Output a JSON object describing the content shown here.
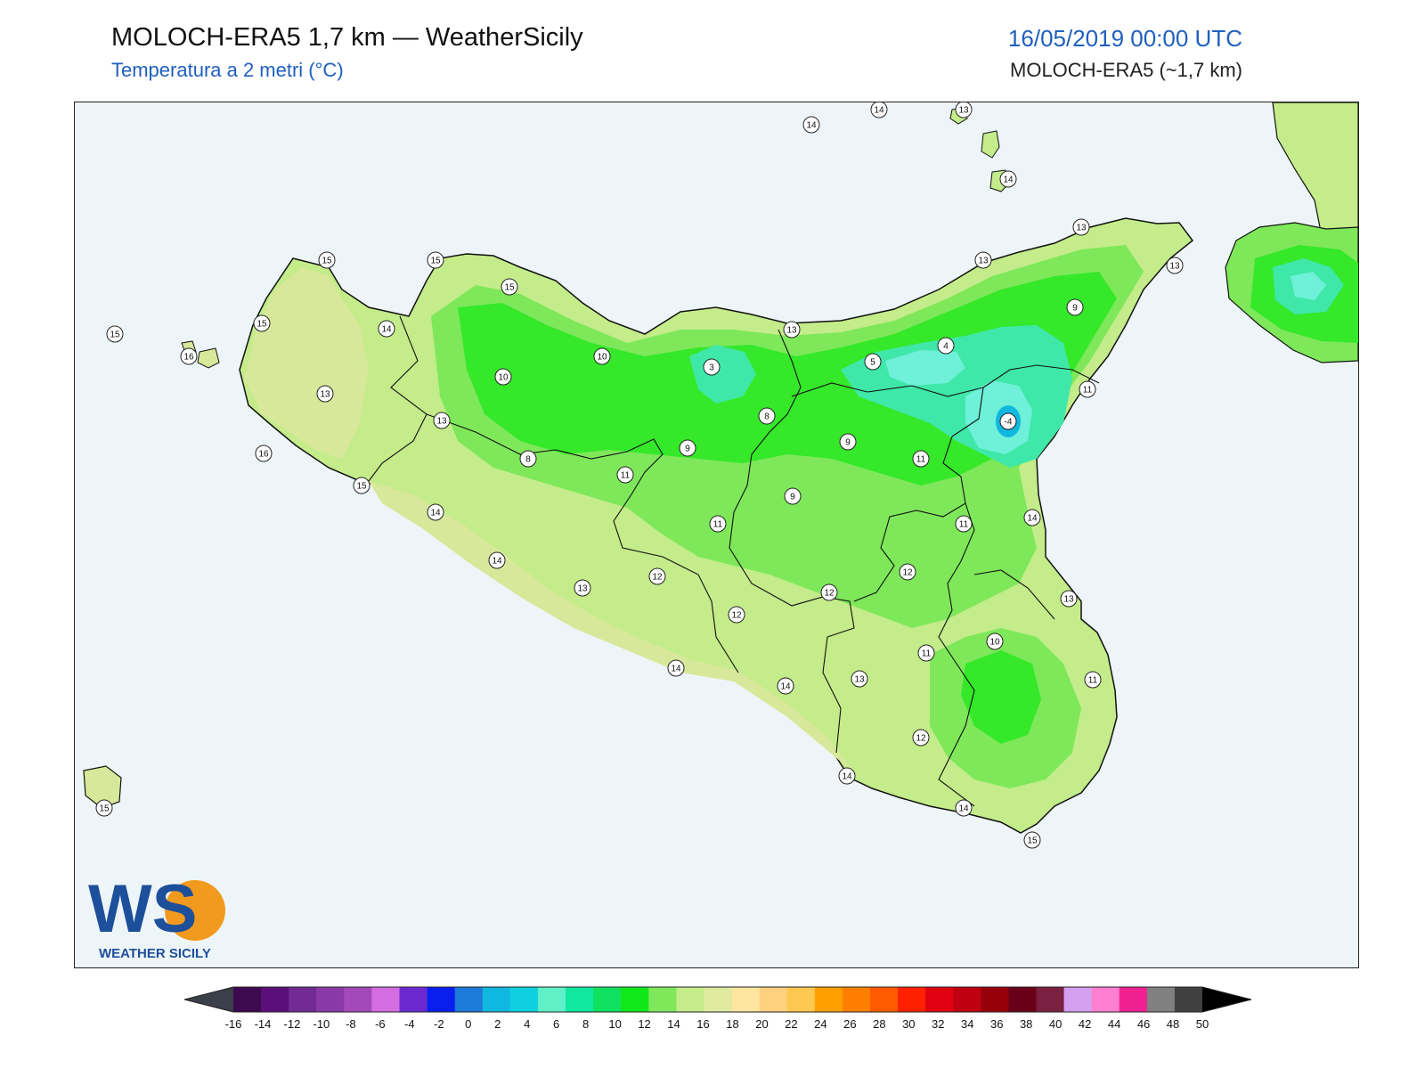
{
  "header": {
    "title": "MOLOCH-ERA5 1,7 km — WeatherSicily",
    "subtitle": "Temperatura a 2 metri (°C)",
    "datetime": "16/05/2019 00:00 UTC",
    "model": "MOLOCH-ERA5 (~1,7 km)"
  },
  "logo": {
    "letters": "WS",
    "caption": "WEATHER SICILY"
  },
  "colors": {
    "sea": "#eef5f9",
    "land_warm": "#d8e89a",
    "land_mild": "#c4ec8a",
    "land_green": "#7ee85a",
    "land_bright": "#35e82a",
    "land_teal": "#3fe8a8",
    "land_cyan": "#6ff0d8",
    "peak_blue": "#1a7bd8",
    "title_blue": "#1f5fbf"
  },
  "labels": [
    {
      "v": "14"
    },
    {
      "v": "14"
    },
    {
      "v": "13"
    },
    {
      "v": "14"
    },
    {
      "v": "13"
    },
    {
      "v": "15"
    },
    {
      "v": "15"
    },
    {
      "v": "15"
    },
    {
      "v": "15"
    },
    {
      "v": "14"
    },
    {
      "v": "15"
    },
    {
      "v": "16"
    },
    {
      "v": "13"
    },
    {
      "v": "10"
    },
    {
      "v": "10"
    },
    {
      "v": "13"
    },
    {
      "v": "16"
    },
    {
      "v": "8"
    },
    {
      "v": "15"
    },
    {
      "v": "14"
    },
    {
      "v": "14"
    },
    {
      "v": "3"
    },
    {
      "v": "8"
    },
    {
      "v": "9"
    },
    {
      "v": "11"
    },
    {
      "v": "13"
    },
    {
      "v": "5"
    },
    {
      "v": "4"
    },
    {
      "v": "13"
    },
    {
      "v": "9"
    },
    {
      "v": "13"
    },
    {
      "v": "11"
    },
    {
      "v": "-4"
    },
    {
      "v": "9"
    },
    {
      "v": "11"
    },
    {
      "v": "9"
    },
    {
      "v": "11"
    },
    {
      "v": "11"
    },
    {
      "v": "14"
    },
    {
      "v": "12"
    },
    {
      "v": "13"
    },
    {
      "v": "12"
    },
    {
      "v": "12"
    },
    {
      "v": "12"
    },
    {
      "v": "14"
    },
    {
      "v": "14"
    },
    {
      "v": "13"
    },
    {
      "v": "11"
    },
    {
      "v": "10"
    },
    {
      "v": "13"
    },
    {
      "v": "11"
    },
    {
      "v": "12"
    },
    {
      "v": "14"
    },
    {
      "v": "14"
    },
    {
      "v": "15"
    },
    {
      "v": "15"
    }
  ],
  "colorbar": {
    "ticks": [
      "-16",
      "-14",
      "-12",
      "-10",
      "-8",
      "-6",
      "-4",
      "-2",
      "0",
      "2",
      "4",
      "6",
      "8",
      "10",
      "12",
      "14",
      "16",
      "18",
      "20",
      "22",
      "24",
      "26",
      "28",
      "30",
      "32",
      "34",
      "36",
      "38",
      "40",
      "42",
      "44",
      "46",
      "48",
      "50"
    ],
    "swatches": [
      "#3d0a4f",
      "#5a1078",
      "#722a94",
      "#8a3aa8",
      "#a44ab8",
      "#d46ee0",
      "#6a2ad0",
      "#0a1ef0",
      "#1a7bd8",
      "#10b8e0",
      "#0fd0e0",
      "#60f0c8",
      "#10e8a0",
      "#10e060",
      "#10e81a",
      "#7ee85a",
      "#c4ec8a",
      "#e0eaa0",
      "#ffe6a0",
      "#ffd080",
      "#ffc850",
      "#ffa000",
      "#ff8000",
      "#ff5a00",
      "#ff2000",
      "#e00010",
      "#c00010",
      "#960008",
      "#6a0018",
      "#7a2040",
      "#d4a0f0",
      "#ff80d0",
      "#f02090",
      "#808080",
      "#404040"
    ],
    "under_color": "#3b3f4a",
    "over_color": "#000000"
  }
}
